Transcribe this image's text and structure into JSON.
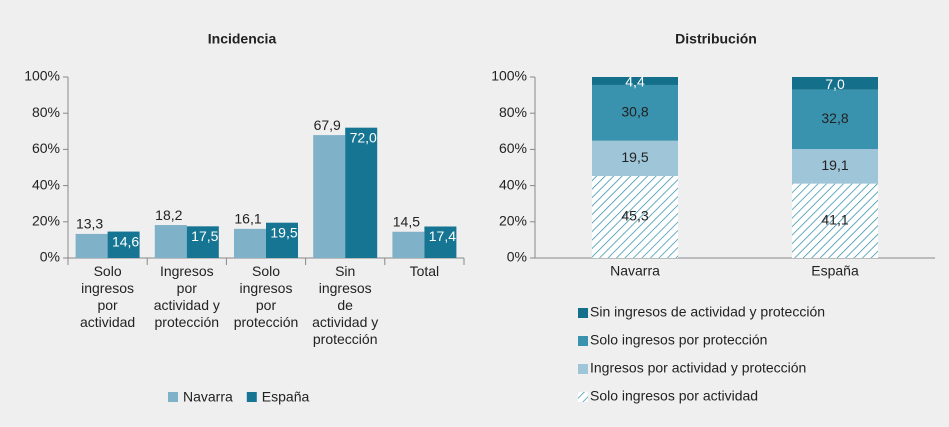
{
  "chart_data": [
    {
      "type": "bar",
      "title": "Incidencia",
      "categories": [
        "Solo\ningresos\npor\nactividad",
        "Ingresos\npor\nactividad y\nprotección",
        "Solo\ningresos\npor\nprotección",
        "Sin\ningresos\nde\nactividad y\nprotección",
        "Total"
      ],
      "series": [
        {
          "name": "Navarra",
          "color": "#7fb1c9",
          "values": [
            13.3,
            18.2,
            16.1,
            67.9,
            14.5
          ],
          "value_labels": [
            "13,3",
            "18,2",
            "16,1",
            "67,9",
            "14,5"
          ]
        },
        {
          "name": "España",
          "color": "#157592",
          "values": [
            14.6,
            17.5,
            19.5,
            72.0,
            17.4
          ],
          "value_labels": [
            "14,6",
            "17,5",
            "19,5",
            "72,0",
            "17,4"
          ]
        }
      ],
      "ylim": [
        0,
        100
      ],
      "yticks": [
        {
          "value": 0,
          "label": "0%"
        },
        {
          "value": 20,
          "label": "20%"
        },
        {
          "value": 40,
          "label": "40%"
        },
        {
          "value": 60,
          "label": "60%"
        },
        {
          "value": 80,
          "label": "80%"
        },
        {
          "value": 100,
          "label": "100%"
        }
      ],
      "legend": "bottom"
    },
    {
      "type": "stacked_bar",
      "title": "Distribución",
      "categories": [
        "Navarra",
        "España"
      ],
      "series": [
        {
          "name": "Solo ingresos por actividad",
          "color": "#2a8aa6",
          "pattern": "hatch",
          "values": [
            45.3,
            41.1
          ],
          "value_labels": [
            "45,3",
            "41,1"
          ]
        },
        {
          "name": "Ingresos por actividad y protección",
          "color": "#9fc5d8",
          "values": [
            19.5,
            19.1
          ],
          "value_labels": [
            "19,5",
            "19,1"
          ]
        },
        {
          "name": "Solo ingresos por protección",
          "color": "#3a93ae",
          "values": [
            30.8,
            32.8
          ],
          "value_labels": [
            "30,8",
            "32,8"
          ]
        },
        {
          "name": "Sin ingresos de actividad y protección",
          "color": "#146f8b",
          "values": [
            4.4,
            7.0
          ],
          "value_labels": [
            "4,4",
            "7,0"
          ]
        }
      ],
      "ylim": [
        0,
        100
      ],
      "yticks": [
        {
          "value": 0,
          "label": "0%"
        },
        {
          "value": 20,
          "label": "20%"
        },
        {
          "value": 40,
          "label": "40%"
        },
        {
          "value": 60,
          "label": "60%"
        },
        {
          "value": 80,
          "label": "80%"
        },
        {
          "value": 100,
          "label": "100%"
        }
      ],
      "legend": "bottom"
    }
  ]
}
